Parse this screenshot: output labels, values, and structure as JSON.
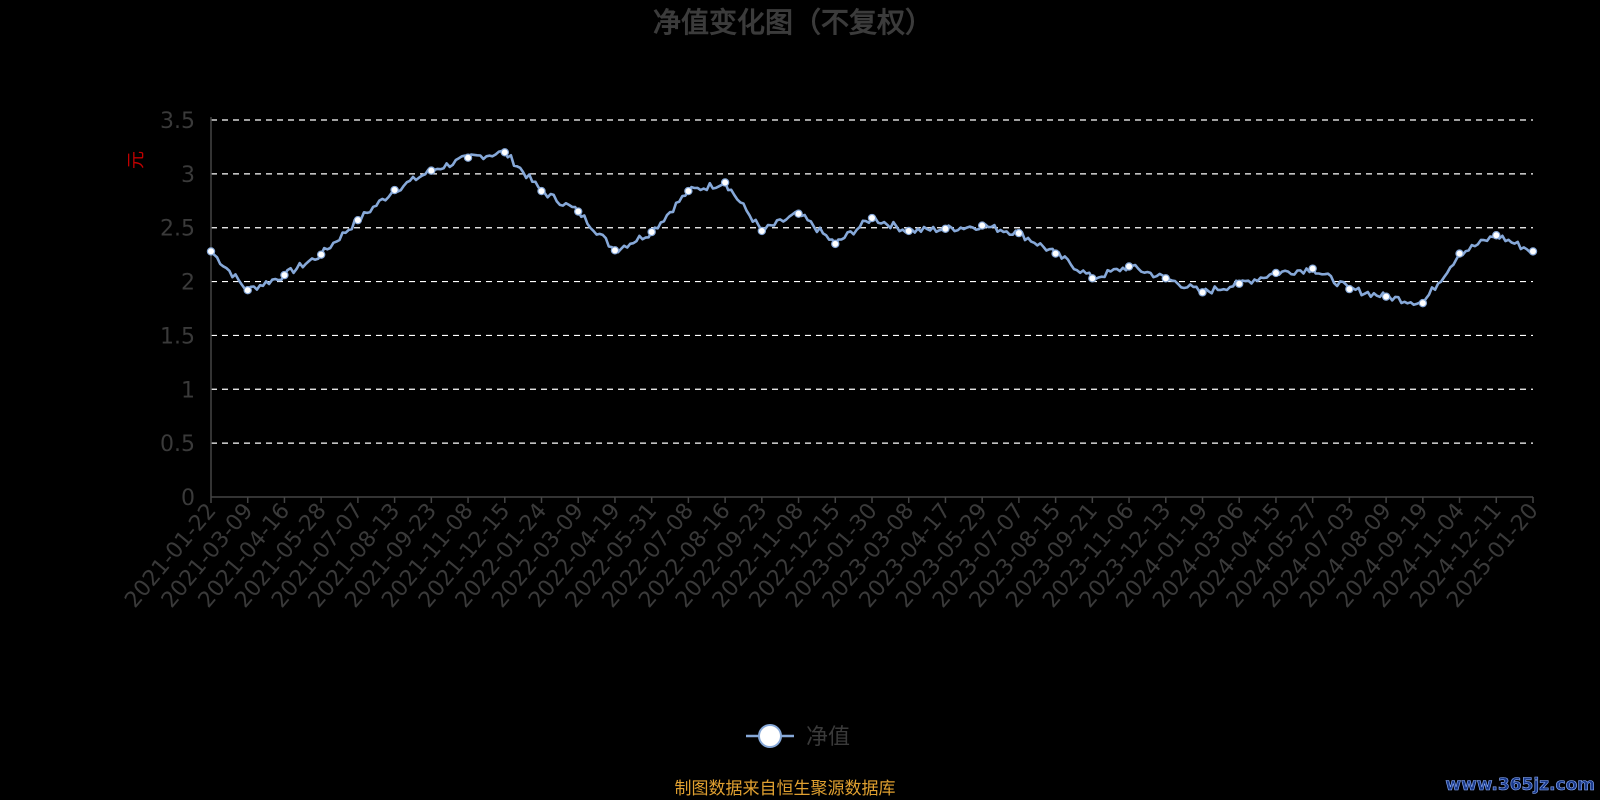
{
  "title": "净值变化图（不复权）",
  "source_note": "制图数据来自恒生聚源数据库",
  "watermark": "www.365jz.com",
  "colors": {
    "line": "#86a8d8",
    "background": "#000000",
    "axis": "#444444",
    "grid": "#ffffff"
  },
  "chart_data": {
    "type": "line",
    "title": "净值变化图（不复权）",
    "ylabel": "元",
    "ylim": [
      0,
      3.5
    ],
    "yticks": [
      "0",
      "0.5",
      "1",
      "1.5",
      "2",
      "2.5",
      "3",
      "3.5"
    ],
    "grid": true,
    "legend_position": "bottom",
    "x_tick_labels": [
      "2021-01-22",
      "2021-03-09",
      "2021-04-16",
      "2021-05-28",
      "2021-07-07",
      "2021-08-13",
      "2021-09-23",
      "2021-11-08",
      "2021-12-15",
      "2022-01-24",
      "2022-03-09",
      "2022-04-19",
      "2022-05-31",
      "2022-07-08",
      "2022-08-16",
      "2022-09-23",
      "2022-11-08",
      "2022-12-15",
      "2023-01-30",
      "2023-03-08",
      "2023-04-17",
      "2023-05-29",
      "2023-07-07",
      "2023-08-15",
      "2023-09-21",
      "2023-11-06",
      "2023-12-13",
      "2024-01-19",
      "2024-03-06",
      "2024-04-15",
      "2024-05-27",
      "2024-07-03",
      "2024-08-09",
      "2024-09-19",
      "2024-11-04",
      "2024-12-11",
      "2025-01-20"
    ],
    "series": [
      {
        "name": "净值",
        "values": [
          2.28,
          1.92,
          2.06,
          2.25,
          2.57,
          2.85,
          3.03,
          3.15,
          3.2,
          2.84,
          2.65,
          2.29,
          2.46,
          2.84,
          2.92,
          2.47,
          2.63,
          2.35,
          2.59,
          2.47,
          2.49,
          2.52,
          2.45,
          2.26,
          2.03,
          2.14,
          2.03,
          1.9,
          1.98,
          2.08,
          2.12,
          1.93,
          1.86,
          1.8,
          2.26,
          2.43,
          2.28
        ]
      }
    ]
  }
}
